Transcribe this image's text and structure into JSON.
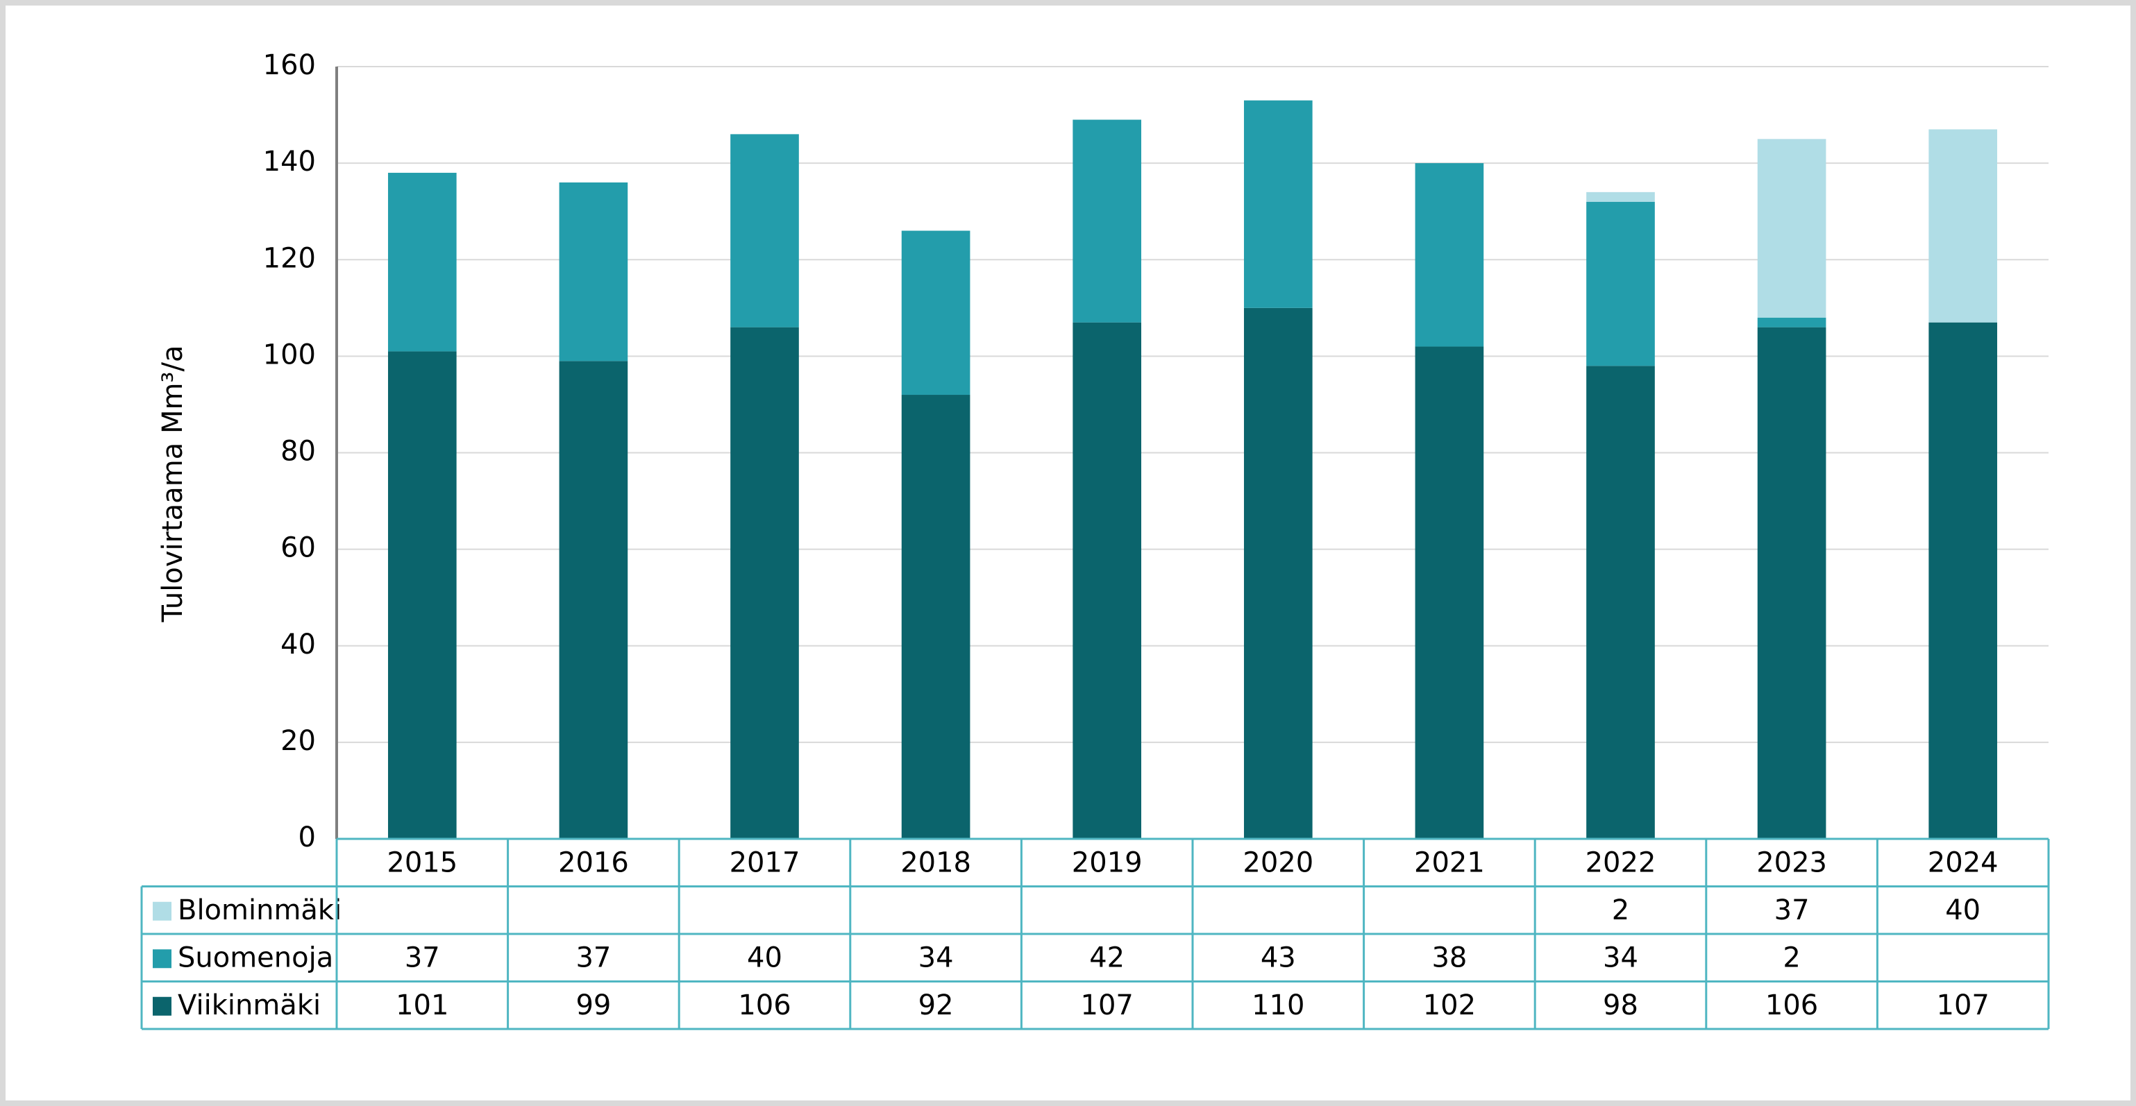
{
  "chart_data": {
    "type": "stacked_bar",
    "y_label": "Tulovirtaama Mm³/a",
    "categories": [
      "2015",
      "2016",
      "2017",
      "2018",
      "2019",
      "2020",
      "2021",
      "2022",
      "2023",
      "2024"
    ],
    "series": [
      {
        "name": "Viikinmäki",
        "color": "#0b646c",
        "values": [
          101,
          99,
          106,
          92,
          107,
          110,
          102,
          98,
          106,
          107
        ]
      },
      {
        "name": "Suomenoja",
        "color": "#239dab",
        "values": [
          37,
          37,
          40,
          34,
          42,
          43,
          38,
          34,
          2,
          null
        ]
      },
      {
        "name": "Blominmäki",
        "color": "#b0dde6",
        "values": [
          null,
          null,
          null,
          null,
          null,
          null,
          null,
          2,
          37,
          40
        ]
      }
    ],
    "ylim": [
      0,
      160
    ],
    "yticks": [
      0,
      20,
      40,
      60,
      80,
      100,
      120,
      140,
      160
    ],
    "grid": true,
    "data_table": true
  }
}
